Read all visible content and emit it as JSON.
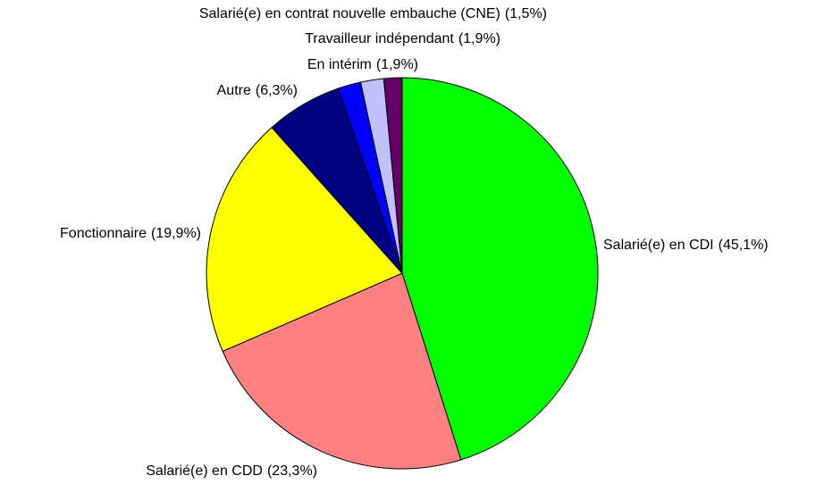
{
  "chart_data": {
    "type": "pie",
    "categories": [
      "Salarié(e) en CDI",
      "Salarié(e) en CDD",
      "Fonctionnaire",
      "Autre",
      "En intérim",
      "Travailleur indépendant",
      "Salarié(e) en contrat nouvelle embauche (CNE)"
    ],
    "values": [
      45.1,
      23.3,
      19.9,
      6.3,
      1.9,
      1.9,
      1.5
    ],
    "value_labels": [
      "(45,1%)",
      "(23,3%)",
      "(19,9%)",
      "(6,3%)",
      "(1,9%)",
      "(1,9%)",
      "(1,5%)"
    ],
    "colors": [
      "#00ff00",
      "#ff8080",
      "#ffff00",
      "#000080",
      "#0000ff",
      "#c0c0ff",
      "#660066"
    ]
  }
}
